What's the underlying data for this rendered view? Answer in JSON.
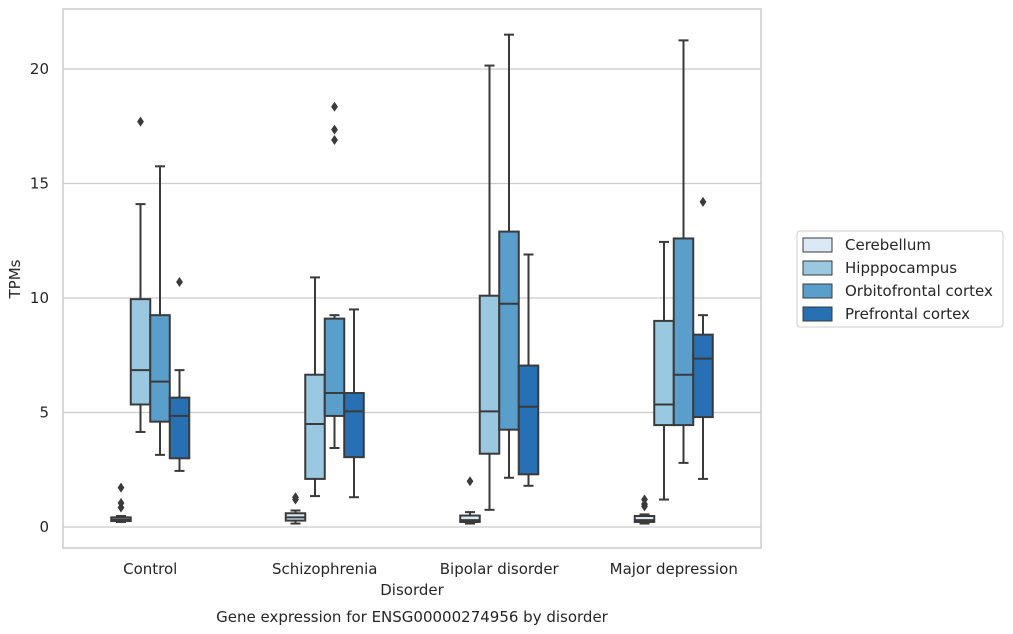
{
  "chart_data": {
    "type": "box",
    "caption": "Gene expression for ENSG00000274956 by disorder",
    "xlabel": "Disorder",
    "ylabel": "TPMs",
    "ylim": [
      -0.9,
      22.6
    ],
    "yticks": [
      0,
      5,
      10,
      15,
      20
    ],
    "grid": "horizontal",
    "legend_position": "right-outside",
    "categories": [
      "Control",
      "Schizophrenia",
      "Bipolar disorder",
      "Major depression"
    ],
    "series": [
      {
        "name": "Cerebellum",
        "color": "#dbe9f6",
        "boxes": [
          {
            "whisker_low": 0.22,
            "q1": 0.26,
            "median": 0.32,
            "q3": 0.42,
            "whisker_high": 0.48,
            "outliers": [
              0.85,
              1.05,
              1.72
            ]
          },
          {
            "whisker_low": 0.15,
            "q1": 0.28,
            "median": 0.42,
            "q3": 0.6,
            "whisker_high": 0.72,
            "outliers": [
              1.2,
              1.3
            ]
          },
          {
            "whisker_low": 0.15,
            "q1": 0.22,
            "median": 0.3,
            "q3": 0.5,
            "whisker_high": 0.65,
            "outliers": [
              2.0
            ]
          },
          {
            "whisker_low": 0.15,
            "q1": 0.22,
            "median": 0.3,
            "q3": 0.48,
            "whisker_high": 0.55,
            "outliers": [
              0.9,
              1.0,
              1.2
            ]
          }
        ]
      },
      {
        "name": "Hipppocampus",
        "color": "#9ac8e0",
        "boxes": [
          {
            "whisker_low": 4.15,
            "q1": 5.35,
            "median": 6.85,
            "q3": 9.95,
            "whisker_high": 14.1,
            "outliers": [
              17.7
            ]
          },
          {
            "whisker_low": 1.35,
            "q1": 2.1,
            "median": 4.5,
            "q3": 6.65,
            "whisker_high": 10.9,
            "outliers": []
          },
          {
            "whisker_low": 0.75,
            "q1": 3.2,
            "median": 5.05,
            "q3": 10.1,
            "whisker_high": 20.15,
            "outliers": []
          },
          {
            "whisker_low": 1.2,
            "q1": 4.45,
            "median": 5.35,
            "q3": 9.0,
            "whisker_high": 12.45,
            "outliers": []
          }
        ]
      },
      {
        "name": "Orbitofrontal cortex",
        "color": "#5a9ecb",
        "boxes": [
          {
            "whisker_low": 3.15,
            "q1": 4.6,
            "median": 6.35,
            "q3": 9.25,
            "whisker_high": 15.75,
            "outliers": []
          },
          {
            "whisker_low": 3.45,
            "q1": 4.85,
            "median": 5.85,
            "q3": 9.1,
            "whisker_high": 9.25,
            "outliers": [
              16.9,
              17.35,
              18.35
            ]
          },
          {
            "whisker_low": 2.15,
            "q1": 4.25,
            "median": 9.75,
            "q3": 12.9,
            "whisker_high": 21.5,
            "outliers": []
          },
          {
            "whisker_low": 2.8,
            "q1": 4.45,
            "median": 6.65,
            "q3": 12.6,
            "whisker_high": 21.25,
            "outliers": []
          }
        ]
      },
      {
        "name": "Prefrontal cortex",
        "color": "#2770b4",
        "boxes": [
          {
            "whisker_low": 2.45,
            "q1": 3.0,
            "median": 4.85,
            "q3": 5.65,
            "whisker_high": 6.85,
            "outliers": [
              10.7
            ]
          },
          {
            "whisker_low": 1.3,
            "q1": 3.05,
            "median": 5.05,
            "q3": 5.85,
            "whisker_high": 9.5,
            "outliers": []
          },
          {
            "whisker_low": 1.8,
            "q1": 2.3,
            "median": 5.25,
            "q3": 7.05,
            "whisker_high": 11.9,
            "outliers": []
          },
          {
            "whisker_low": 2.1,
            "q1": 4.8,
            "median": 7.35,
            "q3": 8.4,
            "whisker_high": 9.25,
            "outliers": [
              14.2
            ]
          }
        ]
      }
    ]
  },
  "colors": {
    "box_edge": "#3a3a3a",
    "grid": "#cccccc",
    "axes_edge": "#cccccc",
    "text": "#262626"
  }
}
